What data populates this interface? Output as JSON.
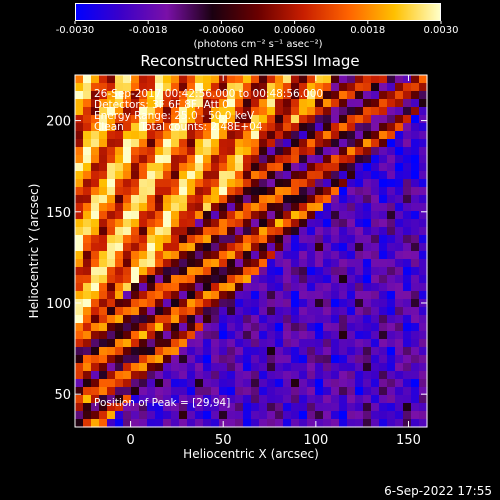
{
  "colorbar": {
    "tick_labels": [
      "-0.0030",
      "-0.0018",
      "-0.00060",
      "0.00060",
      "0.0018",
      "0.0030"
    ],
    "tick_values": [
      -0.003,
      -0.0018,
      -0.0006,
      0.0006,
      0.0018,
      0.003
    ],
    "range": [
      -0.003,
      0.003
    ],
    "units_label": "(photons cm⁻² s⁻¹ asec⁻²)",
    "colormap": [
      "#0000ff",
      "#3c00c8",
      "#7a10a8",
      "#1a0010",
      "#6a0000",
      "#c81e00",
      "#ff6400",
      "#ffc000",
      "#ffffc8"
    ]
  },
  "chart_data": {
    "type": "heatmap",
    "title": "Reconstructed RHESSI Image",
    "xlabel": "Heliocentric X (arcsec)",
    "ylabel": "Heliocentric Y (arcsec)",
    "xlim": [
      -30,
      160
    ],
    "ylim": [
      32,
      225
    ],
    "x_ticks": [
      0,
      50,
      100,
      150
    ],
    "y_ticks": [
      50,
      100,
      150,
      200
    ],
    "x_tick_labels": [
      "0",
      "50",
      "100",
      "150"
    ],
    "y_tick_labels": [
      "50",
      "100",
      "150",
      "200"
    ],
    "peak_position": [
      29,
      94
    ],
    "annotations": [
      "26-Sep-2017 00:42:56.000 to 00:48:56.000",
      "Detectors: 3F 6F 8F, Att 0",
      "Energy Range: 25.0 - 50.0 keV",
      "Clean     Total counts: 2.48E+04"
    ],
    "peak_label": "Position of Peak = [29,94]"
  },
  "footer": {
    "date": "6-Sep-2022 17:55"
  }
}
